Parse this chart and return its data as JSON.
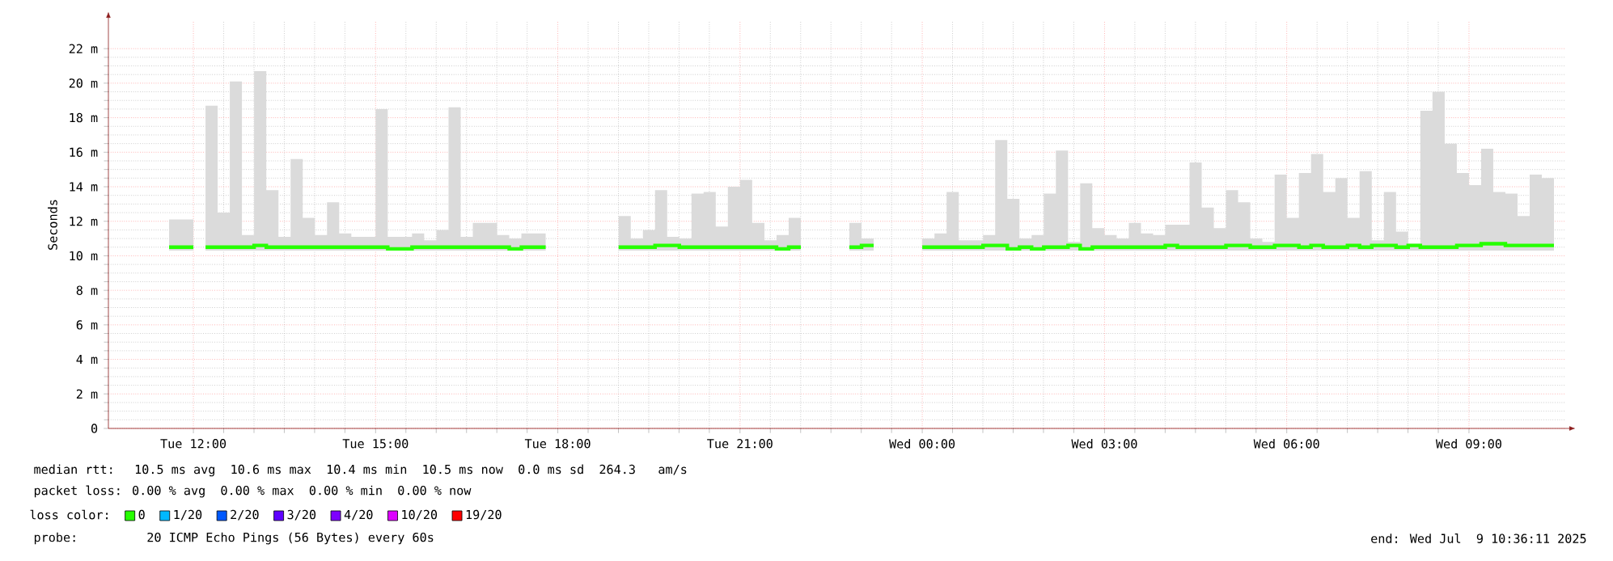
{
  "chart_data": {
    "type": "line",
    "ylabel": "Seconds",
    "legend_title": "loss color:",
    "legend": "bottom",
    "grid": true,
    "xlim": [
      "2025-07-08T10:36",
      "2025-07-09T10:36"
    ],
    "ylim": [
      0,
      23.6
    ],
    "xticks": [
      {
        "value": "2025-07-08T12:00",
        "label": "Tue 12:00"
      },
      {
        "value": "2025-07-08T15:00",
        "label": "Tue 15:00"
      },
      {
        "value": "2025-07-08T18:00",
        "label": "Tue 18:00"
      },
      {
        "value": "2025-07-08T21:00",
        "label": "Tue 21:00"
      },
      {
        "value": "2025-07-09T00:00",
        "label": "Wed 00:00"
      },
      {
        "value": "2025-07-09T03:00",
        "label": "Wed 03:00"
      },
      {
        "value": "2025-07-09T06:00",
        "label": "Wed 06:00"
      },
      {
        "value": "2025-07-09T09:00",
        "label": "Wed 09:00"
      }
    ],
    "yticks": [
      0,
      {
        "value": 2,
        "label": "2 m"
      },
      {
        "value": 4,
        "label": "4 m"
      },
      {
        "value": 6,
        "label": "6 m"
      },
      {
        "value": 8,
        "label": "8 m"
      },
      {
        "value": 10,
        "label": "10 m"
      },
      {
        "value": 12,
        "label": "12 m"
      },
      {
        "value": 14,
        "label": "14 m"
      },
      {
        "value": 16,
        "label": "16 m"
      },
      {
        "value": 18,
        "label": "18 m"
      },
      {
        "value": 20,
        "label": "20 m"
      },
      {
        "value": 22,
        "label": "22 m"
      }
    ],
    "series": [
      {
        "name": "0",
        "color": "#26ff00",
        "x": [
          "2025-07-08T11:42",
          "2025-07-08T11:54",
          "2025-07-08T12:18",
          "2025-07-08T12:30",
          "2025-07-08T12:42",
          "2025-07-08T12:54",
          "2025-07-08T13:06",
          "2025-07-08T13:18",
          "2025-07-08T13:30",
          "2025-07-08T13:42",
          "2025-07-08T13:54",
          "2025-07-08T14:06",
          "2025-07-08T14:18",
          "2025-07-08T14:30",
          "2025-07-08T14:42",
          "2025-07-08T14:54",
          "2025-07-08T15:06",
          "2025-07-08T15:18",
          "2025-07-08T15:30",
          "2025-07-08T15:42",
          "2025-07-08T15:54",
          "2025-07-08T16:06",
          "2025-07-08T16:18",
          "2025-07-08T16:30",
          "2025-07-08T16:42",
          "2025-07-08T16:54",
          "2025-07-08T17:06",
          "2025-07-08T17:18",
          "2025-07-08T17:30",
          "2025-07-08T17:42",
          "2025-07-08T18:24",
          "2025-07-08T19:06",
          "2025-07-08T19:18",
          "2025-07-08T19:30",
          "2025-07-08T19:42",
          "2025-07-08T19:54",
          "2025-07-08T20:06",
          "2025-07-08T20:18",
          "2025-07-08T20:30",
          "2025-07-08T20:42",
          "2025-07-08T20:54",
          "2025-07-08T21:06",
          "2025-07-08T21:18",
          "2025-07-08T21:30",
          "2025-07-08T21:42",
          "2025-07-08T21:54",
          "2025-07-08T22:24",
          "2025-07-08T22:54",
          "2025-07-08T23:06",
          "2025-07-08T23:36",
          "2025-07-09T00:06",
          "2025-07-09T00:18",
          "2025-07-09T00:30",
          "2025-07-09T00:42",
          "2025-07-09T00:54",
          "2025-07-09T01:06",
          "2025-07-09T01:18",
          "2025-07-09T01:30",
          "2025-07-09T01:42",
          "2025-07-09T01:54",
          "2025-07-09T02:06",
          "2025-07-09T02:18",
          "2025-07-09T02:30",
          "2025-07-09T02:42",
          "2025-07-09T02:54",
          "2025-07-09T03:06",
          "2025-07-09T03:18",
          "2025-07-09T03:30",
          "2025-07-09T03:42",
          "2025-07-09T03:54",
          "2025-07-09T04:06",
          "2025-07-09T04:18",
          "2025-07-09T04:30",
          "2025-07-09T04:42",
          "2025-07-09T04:54",
          "2025-07-09T05:06",
          "2025-07-09T05:18",
          "2025-07-09T05:30",
          "2025-07-09T05:42",
          "2025-07-09T05:54",
          "2025-07-09T06:06",
          "2025-07-09T06:18",
          "2025-07-09T06:30",
          "2025-07-09T06:42",
          "2025-07-09T06:54",
          "2025-07-09T07:06",
          "2025-07-09T07:18",
          "2025-07-09T07:30",
          "2025-07-09T07:42",
          "2025-07-09T07:54",
          "2025-07-09T08:06",
          "2025-07-09T08:18",
          "2025-07-09T08:30",
          "2025-07-09T08:42",
          "2025-07-09T08:54",
          "2025-07-09T09:06",
          "2025-07-09T09:18",
          "2025-07-09T09:30",
          "2025-07-09T09:42",
          "2025-07-09T09:54",
          "2025-07-09T10:06",
          "2025-07-09T10:18"
        ],
        "values": [
          10.5,
          10.5,
          10.5,
          10.5,
          10.5,
          10.5,
          10.6,
          10.5,
          10.5,
          10.5,
          10.5,
          10.5,
          10.5,
          10.5,
          10.5,
          10.5,
          10.5,
          10.4,
          10.4,
          10.5,
          10.5,
          10.5,
          10.5,
          10.5,
          10.5,
          10.5,
          10.5,
          10.4,
          10.5,
          10.5,
          null,
          10.5,
          10.5,
          10.5,
          10.6,
          10.6,
          10.5,
          10.5,
          10.5,
          10.5,
          10.5,
          10.5,
          10.5,
          10.5,
          10.4,
          10.5,
          null,
          10.5,
          10.6,
          null,
          10.5,
          10.5,
          10.5,
          10.5,
          10.5,
          10.6,
          10.6,
          10.4,
          10.5,
          10.4,
          10.5,
          10.5,
          10.6,
          10.4,
          10.5,
          10.5,
          10.5,
          10.5,
          10.5,
          10.5,
          10.6,
          10.5,
          10.5,
          10.5,
          10.5,
          10.6,
          10.6,
          10.5,
          10.5,
          10.6,
          10.6,
          10.5,
          10.6,
          10.5,
          10.5,
          10.6,
          10.5,
          10.6,
          10.6,
          10.5,
          10.6,
          10.5,
          10.5,
          10.5,
          10.6,
          10.6,
          10.7,
          10.7,
          10.6,
          10.6,
          10.6,
          10.6
        ],
        "lower": [
          10.3,
          10.3,
          10.3,
          10.3,
          10.3,
          10.3,
          10.3,
          10.3,
          10.3,
          10.3,
          10.3,
          10.3,
          10.3,
          10.3,
          10.3,
          10.3,
          10.3,
          10.3,
          10.3,
          10.3,
          10.3,
          10.3,
          10.3,
          10.3,
          10.3,
          10.3,
          10.3,
          10.3,
          10.3,
          10.3,
          null,
          10.3,
          10.3,
          10.3,
          10.3,
          10.3,
          10.3,
          10.3,
          10.3,
          10.3,
          10.3,
          10.3,
          10.3,
          10.3,
          10.3,
          10.3,
          null,
          10.3,
          10.3,
          null,
          10.3,
          10.3,
          10.3,
          10.3,
          10.3,
          10.3,
          10.3,
          10.3,
          10.3,
          10.3,
          10.3,
          10.3,
          10.3,
          10.3,
          10.3,
          10.3,
          10.3,
          10.3,
          10.3,
          10.3,
          10.3,
          10.3,
          10.3,
          10.3,
          10.3,
          10.3,
          10.3,
          10.3,
          10.3,
          10.3,
          10.3,
          10.3,
          10.3,
          10.3,
          10.3,
          10.3,
          10.3,
          10.3,
          10.3,
          10.3,
          10.3,
          10.3,
          10.3,
          10.3,
          10.3,
          10.3,
          10.3,
          10.3,
          10.3,
          10.3,
          10.3,
          10.3
        ],
        "upper": [
          12.1,
          12.1,
          18.7,
          12.5,
          20.1,
          11.2,
          20.7,
          13.8,
          11.1,
          15.6,
          12.2,
          11.2,
          13.1,
          11.3,
          11.1,
          11.1,
          18.5,
          11.1,
          11.1,
          11.3,
          10.9,
          11.5,
          18.6,
          11.1,
          11.9,
          11.9,
          11.2,
          11.0,
          11.3,
          11.3,
          null,
          12.3,
          11.0,
          11.5,
          13.8,
          11.1,
          11.0,
          13.6,
          13.7,
          11.7,
          14.0,
          14.4,
          11.9,
          10.9,
          11.2,
          12.2,
          null,
          11.9,
          11.0,
          null,
          11.0,
          11.3,
          13.7,
          10.9,
          10.9,
          11.2,
          16.7,
          13.3,
          11.0,
          11.2,
          13.6,
          16.1,
          10.8,
          14.2,
          11.6,
          11.2,
          11.0,
          11.9,
          11.3,
          11.2,
          11.8,
          11.8,
          15.4,
          12.8,
          11.6,
          13.8,
          13.1,
          11.0,
          10.8,
          14.7,
          12.2,
          14.8,
          15.9,
          13.7,
          14.5,
          12.2,
          14.9,
          10.9,
          13.7,
          11.4,
          10.7,
          18.4,
          19.5,
          16.5,
          14.8,
          14.1,
          16.2,
          13.7,
          13.6,
          12.3,
          14.7,
          14.5
        ]
      },
      {
        "name": "1/20",
        "color": "#00b8ff"
      },
      {
        "name": "2/20",
        "color": "#0059ff"
      },
      {
        "name": "3/20",
        "color": "#5e00ff"
      },
      {
        "name": "4/20",
        "color": "#7e00ff"
      },
      {
        "name": "10/20",
        "color": "#dd00ff"
      },
      {
        "name": "19/20",
        "color": "#ff0000"
      }
    ],
    "annotations": [
      "median rtt:  10.5 ms avg  10.6 ms max  10.4 ms min  10.5 ms now  0.0 ms sd  264.3   am/s",
      "packet loss: 0.00 % avg  0.00 % max  0.00 % min  0.00 % now",
      "probe:       20 ICMP Echo Pings (56 Bytes) every 60s",
      "end: Wed Jul  9 10:36:11 2025"
    ]
  }
}
